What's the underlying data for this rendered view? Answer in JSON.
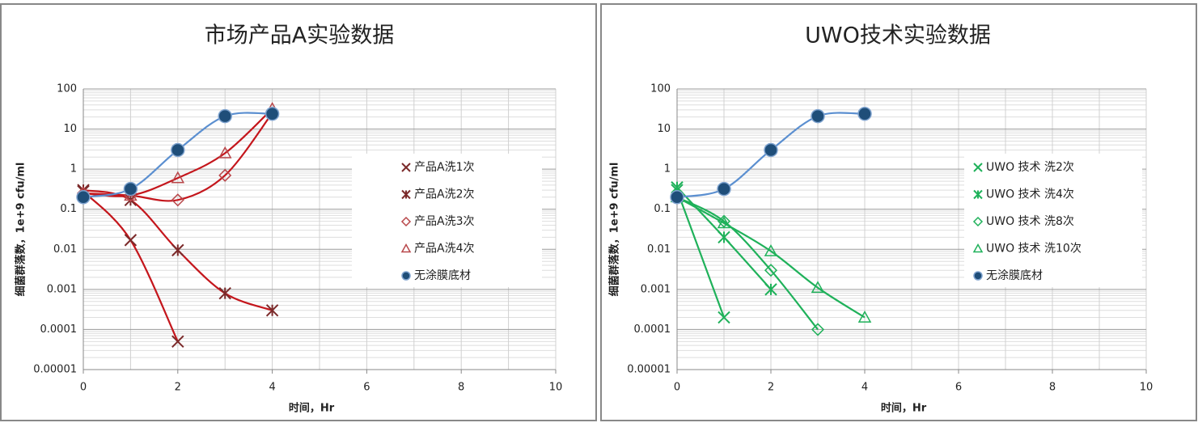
{
  "chart_data": [
    {
      "type": "line",
      "title": "市场产品A实验数据",
      "x_label": "时间，Hr",
      "y_label": "细菌群落数，1e+9 cfu/ml",
      "xlim": [
        0,
        10
      ],
      "xticks": [
        0,
        2,
        4,
        6,
        8,
        10
      ],
      "ylim": [
        1e-05,
        100
      ],
      "yticks": [
        1e-05,
        0.0001,
        0.001,
        0.01,
        0.1,
        1,
        10,
        100
      ],
      "log_y": true,
      "grid": true,
      "series": [
        {
          "name": "产品A洗1次",
          "marker": "x",
          "color": "#7b2a2a",
          "line_color": "#c4161c",
          "x": [
            0,
            1,
            2
          ],
          "values": [
            0.28,
            0.017,
            5e-05
          ]
        },
        {
          "name": "产品A洗2次",
          "marker": "star",
          "color": "#7b2a2a",
          "line_color": "#c4161c",
          "x": [
            0,
            1,
            2,
            3,
            4
          ],
          "values": [
            0.3,
            0.17,
            0.0095,
            0.0008,
            0.0003
          ]
        },
        {
          "name": "产品A洗3次",
          "marker": "diamond",
          "color": "#b8474a",
          "line_color": "#c4161c",
          "x": [
            0,
            1,
            2,
            3,
            4
          ],
          "values": [
            0.25,
            0.22,
            0.17,
            0.7,
            25
          ]
        },
        {
          "name": "产品A洗4次",
          "marker": "triangle",
          "color": "#b8474a",
          "line_color": "#c4161c",
          "x": [
            0,
            1,
            2,
            3,
            4
          ],
          "values": [
            0.25,
            0.22,
            0.6,
            2.5,
            32
          ]
        },
        {
          "name": "无涂膜底材",
          "marker": "circle",
          "color": "#1f4e79",
          "line_color": "#5b8fd0",
          "x": [
            0,
            1,
            2,
            3,
            4
          ],
          "values": [
            0.2,
            0.32,
            3,
            21,
            24
          ]
        }
      ]
    },
    {
      "type": "line",
      "title": "UWO技术实验数据",
      "x_label": "时间，Hr",
      "y_label": "细菌群落数，1e+9 cfu/ml",
      "xlim": [
        0,
        10
      ],
      "xticks": [
        0,
        2,
        4,
        6,
        8,
        10
      ],
      "ylim": [
        1e-05,
        100
      ],
      "yticks": [
        1e-05,
        0.0001,
        0.001,
        0.01,
        0.1,
        1,
        10,
        100
      ],
      "log_y": true,
      "grid": true,
      "series": [
        {
          "name": "UWO 技术 洗2次",
          "marker": "x",
          "color": "#1fb15a",
          "line_color": "#1fb15a",
          "x": [
            0,
            1
          ],
          "values": [
            0.3,
            0.0002
          ]
        },
        {
          "name": "UWO 技术 洗4次",
          "marker": "star",
          "color": "#1fb15a",
          "line_color": "#1fb15a",
          "x": [
            0,
            1,
            2
          ],
          "values": [
            0.35,
            0.02,
            0.001
          ]
        },
        {
          "name": "UWO 技术 洗8次",
          "marker": "diamond",
          "color": "#1fb15a",
          "line_color": "#1fb15a",
          "x": [
            0,
            1,
            2,
            3
          ],
          "values": [
            0.2,
            0.05,
            0.003,
            0.0001
          ]
        },
        {
          "name": "UWO 技术 洗10次",
          "marker": "triangle",
          "color": "#1fb15a",
          "line_color": "#1fb15a",
          "x": [
            0,
            1,
            2,
            3,
            4
          ],
          "values": [
            0.2,
            0.045,
            0.009,
            0.0011,
            0.0002
          ]
        },
        {
          "name": "无涂膜底材",
          "marker": "circle",
          "color": "#1f4e79",
          "line_color": "#5b8fd0",
          "x": [
            0,
            1,
            2,
            3,
            4
          ],
          "values": [
            0.2,
            0.32,
            3,
            21,
            24
          ]
        }
      ]
    }
  ]
}
